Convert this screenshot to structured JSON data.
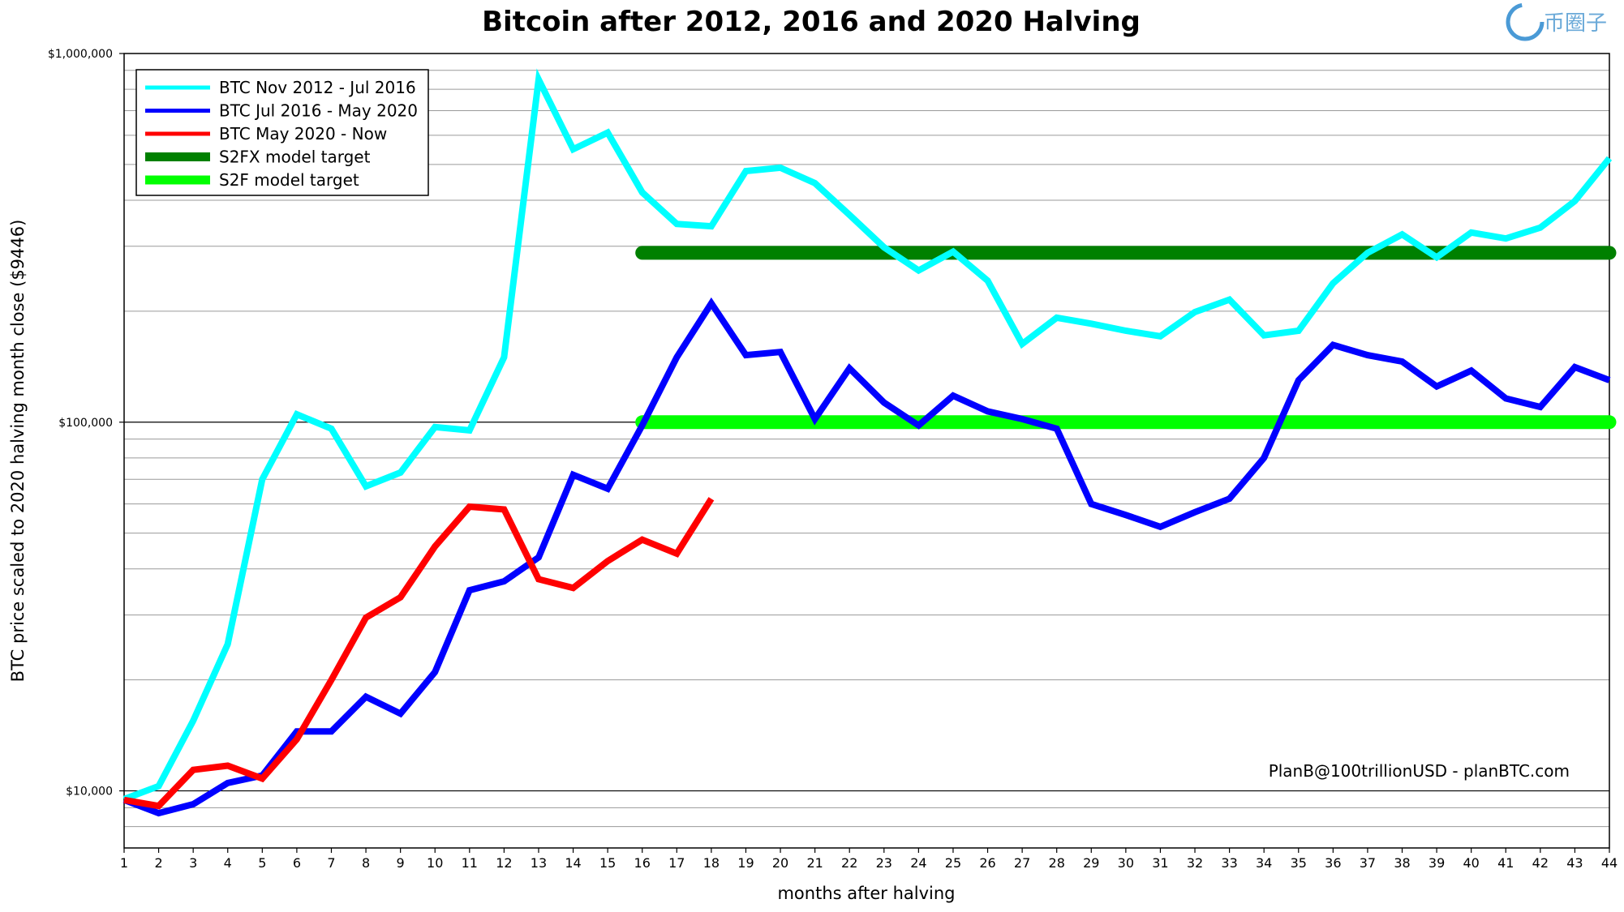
{
  "watermark": "币圈子",
  "credit": "PlanB@100trillionUSD  -  planBTC.com",
  "chart_data": {
    "type": "line",
    "title": "Bitcoin after 2012, 2016 and 2020 Halving",
    "xlabel": "months after halving",
    "ylabel": "BTC price scaled to 2020 halving month close ($9446)",
    "y_scale": "log",
    "xlim": [
      1,
      44
    ],
    "ylim": [
      7000,
      1000000
    ],
    "x_ticks": [
      1,
      2,
      3,
      4,
      5,
      6,
      7,
      8,
      9,
      10,
      11,
      12,
      13,
      14,
      15,
      16,
      17,
      18,
      19,
      20,
      21,
      22,
      23,
      24,
      25,
      26,
      27,
      28,
      29,
      30,
      31,
      32,
      33,
      34,
      35,
      36,
      37,
      38,
      39,
      40,
      41,
      42,
      43,
      44
    ],
    "y_ticks": [
      {
        "value": 10000,
        "label": "$10,000"
      },
      {
        "value": 100000,
        "label": "$100,000"
      },
      {
        "value": 1000000,
        "label": "$1,000,000"
      }
    ],
    "grid": true,
    "legend_position": "top-left",
    "series": [
      {
        "name": "BTC Nov 2012 - Jul 2016",
        "color": "#00ffff",
        "width": 8,
        "x": [
          1,
          2,
          3,
          4,
          5,
          6,
          7,
          8,
          9,
          10,
          11,
          12,
          13,
          14,
          15,
          16,
          17,
          18,
          19,
          20,
          21,
          22,
          23,
          24,
          25,
          26,
          27,
          28,
          29,
          30,
          31,
          32,
          33,
          34,
          35,
          36,
          37,
          38,
          39,
          40,
          41,
          42,
          43,
          44
        ],
        "y": [
          9500,
          10300,
          15500,
          25000,
          70000,
          105000,
          96000,
          67000,
          73000,
          97000,
          95000,
          150000,
          850000,
          550000,
          610000,
          420000,
          345000,
          340000,
          480000,
          490000,
          445000,
          365000,
          298000,
          258000,
          290000,
          242000,
          163000,
          192000,
          185000,
          177000,
          171000,
          199000,
          215000,
          172000,
          177000,
          238000,
          288000,
          323000,
          280000,
          327000,
          315000,
          337000,
          398000,
          520000
        ]
      },
      {
        "name": "BTC Jul 2016 - May 2020",
        "color": "#0000ff",
        "width": 8,
        "x": [
          1,
          2,
          3,
          4,
          5,
          6,
          7,
          8,
          9,
          10,
          11,
          12,
          13,
          14,
          15,
          16,
          17,
          18,
          19,
          20,
          21,
          22,
          23,
          24,
          25,
          26,
          27,
          28,
          29,
          30,
          31,
          32,
          33,
          34,
          35,
          36,
          37,
          38,
          39,
          40,
          41,
          42,
          43,
          44
        ],
        "y": [
          9446,
          8700,
          9200,
          10500,
          11000,
          14500,
          14500,
          18000,
          16200,
          21000,
          35000,
          37000,
          43000,
          72000,
          66000,
          98000,
          150000,
          210000,
          152000,
          155000,
          102000,
          140000,
          113000,
          98000,
          118000,
          107000,
          102000,
          96000,
          60000,
          56000,
          52000,
          57000,
          62000,
          80000,
          130000,
          162000,
          152000,
          146000,
          125000,
          138000,
          116000,
          110000,
          141000,
          130000
        ]
      },
      {
        "name": "BTC May 2020 - Now",
        "color": "#ff0000",
        "width": 8,
        "x": [
          1,
          2,
          3,
          4,
          5,
          6,
          7,
          8,
          9,
          10,
          11,
          12,
          13,
          14,
          15,
          16,
          17,
          18
        ],
        "y": [
          9446,
          9100,
          11400,
          11700,
          10800,
          13800,
          20000,
          29500,
          33500,
          46000,
          59000,
          58000,
          37500,
          35500,
          42000,
          48000,
          44000,
          62000
        ]
      },
      {
        "name": "S2FX model target",
        "color": "#008000",
        "width": 17,
        "x": [
          16,
          44
        ],
        "y": [
          288000,
          288000
        ]
      },
      {
        "name": "S2F model target",
        "color": "#00ff00",
        "width": 17,
        "x": [
          16,
          44
        ],
        "y": [
          100000,
          100000
        ]
      }
    ]
  }
}
